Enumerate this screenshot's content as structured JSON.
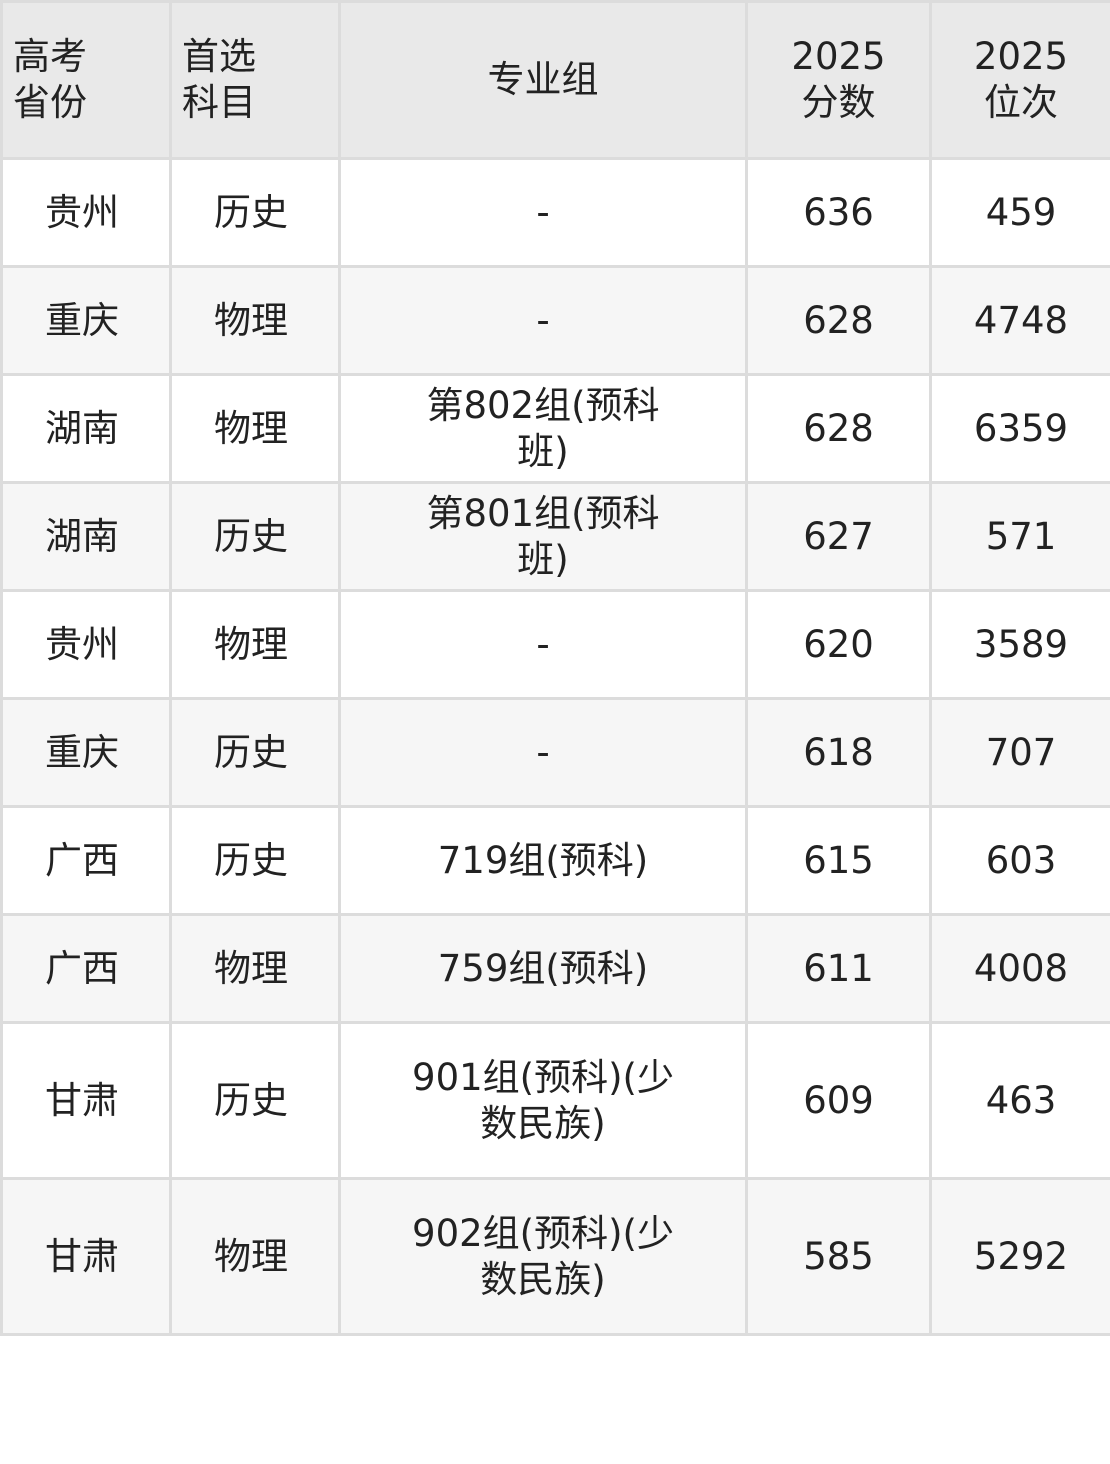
{
  "headers": [
    "高考省份",
    "首选科目",
    "专业组",
    "2025分数",
    "2025位次"
  ],
  "header_lines": [
    [
      "高考",
      "省份"
    ],
    [
      "首选",
      "科目"
    ],
    [
      "专业组"
    ],
    [
      "2025",
      "分数"
    ],
    [
      "2025",
      "位次"
    ]
  ],
  "rows": [
    [
      "贵州",
      "历史",
      "-",
      "636",
      "459"
    ],
    [
      "重庆",
      "物理",
      "-",
      "628",
      "4748"
    ],
    [
      "湖南",
      "物理",
      "第802组(预科班)",
      "628",
      "6359"
    ],
    [
      "湖南",
      "历史",
      "第801组(预科班)",
      "627",
      "571"
    ],
    [
      "贵州",
      "物理",
      "-",
      "620",
      "3589"
    ],
    [
      "重庆",
      "历史",
      "-",
      "618",
      "707"
    ],
    [
      "广西",
      "历史",
      "719组(预科)",
      "615",
      "603"
    ],
    [
      "广西",
      "物理",
      "759组(预科)",
      "611",
      "4008"
    ],
    [
      "甘肃",
      "历史",
      "901组(预科)(少数民族)",
      "609",
      "463"
    ],
    [
      "甘肃",
      "物理",
      "902组(预科)(少数民族)",
      "585",
      "5292"
    ]
  ],
  "colors": {
    "header_bg": "#e9e9e9",
    "border": "#dcdcdc",
    "alt_row": "#f6f6f6"
  }
}
